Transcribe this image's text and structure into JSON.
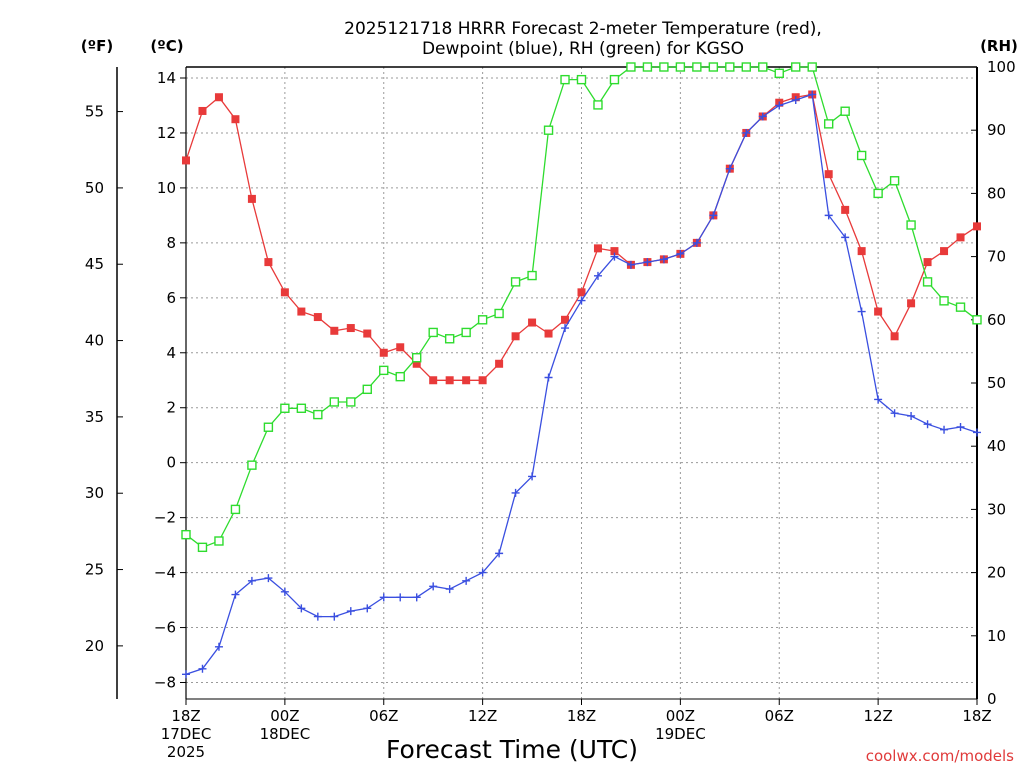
{
  "chart_data": {
    "type": "line",
    "title_line1": "2025121718 HRRR Forecast 2-meter Temperature (red),",
    "title_line2": "Dewpoint (blue), RH (green) for KGSO",
    "xlabel": "Forecast Time (UTC)",
    "credit": "coolwx.com/models",
    "unit_f": "(ºF)",
    "unit_c": "(ºC)",
    "unit_rh": "(RH)",
    "forecast_hours": [
      0,
      1,
      2,
      3,
      4,
      5,
      6,
      7,
      8,
      9,
      10,
      11,
      12,
      13,
      14,
      15,
      16,
      17,
      18,
      19,
      20,
      21,
      22,
      23,
      24,
      25,
      26,
      27,
      28,
      29,
      30,
      31,
      32,
      33,
      34,
      35,
      36,
      37,
      38,
      39,
      40,
      41,
      42,
      43,
      44,
      45,
      46,
      47,
      48
    ],
    "x_ticks": [
      {
        "hour": 0,
        "lines": [
          "18Z",
          "17DEC",
          "2025"
        ]
      },
      {
        "hour": 6,
        "lines": [
          "00Z",
          "18DEC"
        ]
      },
      {
        "hour": 12,
        "lines": [
          "06Z"
        ]
      },
      {
        "hour": 18,
        "lines": [
          "12Z"
        ]
      },
      {
        "hour": 24,
        "lines": [
          "18Z"
        ]
      },
      {
        "hour": 30,
        "lines": [
          "00Z",
          "19DEC"
        ]
      },
      {
        "hour": 36,
        "lines": [
          "06Z"
        ]
      },
      {
        "hour": 42,
        "lines": [
          "12Z"
        ]
      },
      {
        "hour": 48,
        "lines": [
          "18Z"
        ]
      }
    ],
    "ylim_c": [
      -8.6,
      14.4
    ],
    "ylim_rh": [
      0,
      100
    ],
    "c_ticks": [
      "14",
      "12",
      "10",
      "8",
      "6",
      "4",
      "2",
      "0",
      "−2",
      "−4",
      "−6",
      "−8"
    ],
    "c_tick_values": [
      14,
      12,
      10,
      8,
      6,
      4,
      2,
      0,
      -2,
      -4,
      -6,
      -8
    ],
    "f_ticks": [
      "55",
      "50",
      "45",
      "40",
      "35",
      "30",
      "25",
      "20"
    ],
    "f_tick_values": [
      55,
      50,
      45,
      40,
      35,
      30,
      25,
      20
    ],
    "rh_ticks": [
      "100",
      "90",
      "80",
      "70",
      "60",
      "50",
      "40",
      "30",
      "20",
      "10",
      "0"
    ],
    "rh_tick_values": [
      100,
      90,
      80,
      70,
      60,
      50,
      40,
      30,
      20,
      10,
      0
    ],
    "series": [
      {
        "name": "Temperature",
        "color": "#e83a3a",
        "marker": "filled-square",
        "axis": "c",
        "values": [
          11.0,
          12.8,
          13.3,
          12.5,
          9.6,
          7.3,
          6.2,
          5.5,
          5.3,
          4.8,
          4.9,
          4.7,
          4.0,
          4.2,
          3.6,
          3.0,
          3.0,
          3.0,
          3.0,
          3.6,
          4.6,
          5.1,
          4.7,
          5.2,
          6.2,
          7.8,
          7.7,
          7.2,
          7.3,
          7.4,
          7.6,
          8.0,
          9.0,
          10.7,
          12.0,
          12.6,
          13.1,
          13.3,
          13.4,
          10.5,
          9.2,
          7.7,
          5.5,
          4.6,
          5.8,
          7.3,
          7.7,
          8.2,
          8.6
        ]
      },
      {
        "name": "Dewpoint",
        "color": "#3a4fe0",
        "marker": "plus",
        "axis": "c",
        "values": [
          -7.7,
          -7.5,
          -6.7,
          -4.8,
          -4.3,
          -4.2,
          -4.7,
          -5.3,
          -5.6,
          -5.6,
          -5.4,
          -5.3,
          -4.9,
          -4.9,
          -4.9,
          -4.5,
          -4.6,
          -4.3,
          -4.0,
          -3.3,
          -1.1,
          -0.5,
          3.1,
          4.9,
          5.9,
          6.8,
          7.5,
          7.2,
          7.3,
          7.4,
          7.6,
          8.0,
          9.0,
          10.7,
          12.0,
          12.6,
          13.0,
          13.2,
          13.4,
          9.0,
          8.2,
          5.5,
          2.3,
          1.8,
          1.7,
          1.4,
          1.2,
          1.3,
          1.1
        ]
      },
      {
        "name": "RH",
        "color": "#2edc2e",
        "marker": "open-square",
        "axis": "rh",
        "values": [
          26,
          24,
          25,
          30,
          37,
          43,
          46,
          46,
          45,
          47,
          47,
          49,
          52,
          51,
          54,
          58,
          57,
          58,
          60,
          61,
          66,
          67,
          90,
          98,
          98,
          94,
          98,
          100,
          100,
          100,
          100,
          100,
          100,
          100,
          100,
          100,
          99,
          100,
          100,
          91,
          93,
          86,
          80,
          82,
          75,
          66,
          63,
          62,
          60
        ]
      }
    ]
  }
}
